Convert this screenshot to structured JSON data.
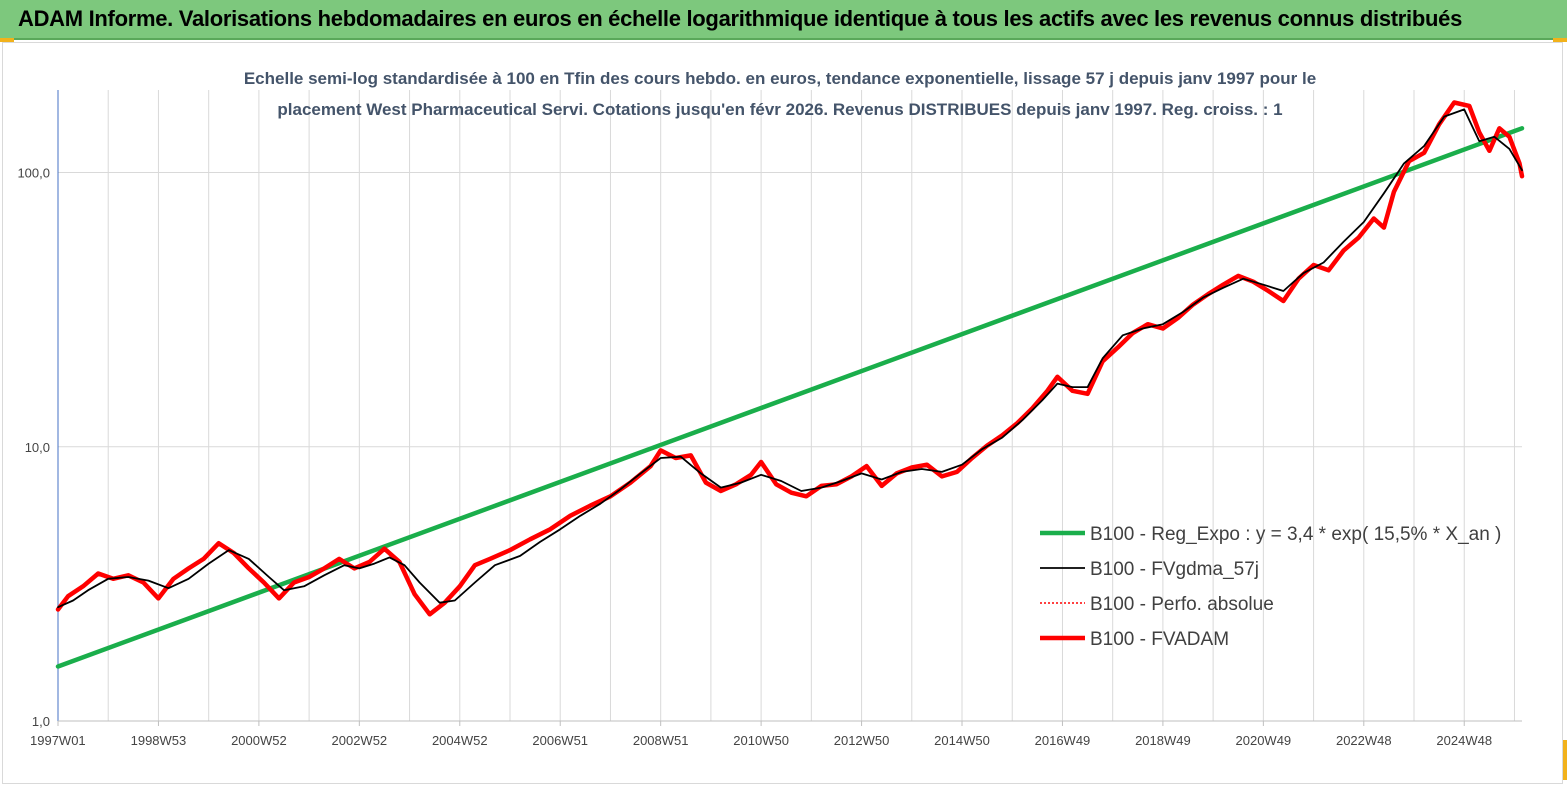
{
  "banner": {
    "title": "ADAM Informe. Valorisations hebdomadaires en euros en échelle logarithmique identique à tous les actifs avec les revenus connus distribués"
  },
  "colors": {
    "banner_bg": "#7dc87d",
    "corner_accent": "#f2b21b",
    "reg_expo": "#1aae4b",
    "fvgdma": "#000000",
    "perfo": "#ff0000",
    "fvadam": "#ff0000"
  },
  "chart_data": {
    "type": "line",
    "title_lines": [
      "Echelle semi-log standardisée à 100 en Tfin des cours hebdo. en euros, tendance exponentielle, lissage 57 j depuis janv 1997 pour le",
      "placement West Pharmaceutical Servi.  Cotations jusqu'en févr 2026. Revenus DISTRIBUES depuis janv 1997.  Reg. croiss. : 1"
    ],
    "y_scale": "log",
    "ylim": [
      1,
      200
    ],
    "y_ticks": [
      {
        "value": 1,
        "label": "1,0"
      },
      {
        "value": 10,
        "label": "10,0"
      },
      {
        "value": 100,
        "label": "100,0"
      }
    ],
    "xlim": [
      1997.0,
      2026.15
    ],
    "x_ticks": [
      {
        "value": 1997.0,
        "label": "1997W01"
      },
      {
        "value": 1999.0,
        "label": "1998W53"
      },
      {
        "value": 2001.0,
        "label": "2000W52"
      },
      {
        "value": 2003.0,
        "label": "2002W52"
      },
      {
        "value": 2005.0,
        "label": "2004W52"
      },
      {
        "value": 2007.0,
        "label": "2006W51"
      },
      {
        "value": 2009.0,
        "label": "2008W51"
      },
      {
        "value": 2011.0,
        "label": "2010W50"
      },
      {
        "value": 2013.0,
        "label": "2012W50"
      },
      {
        "value": 2015.0,
        "label": "2014W50"
      },
      {
        "value": 2017.0,
        "label": "2016W49"
      },
      {
        "value": 2019.0,
        "label": "2018W49"
      },
      {
        "value": 2021.0,
        "label": "2020W49"
      },
      {
        "value": 2023.0,
        "label": "2022W48"
      },
      {
        "value": 2025.0,
        "label": "2024W48"
      }
    ],
    "grid": "vertical and horizontal major gridlines",
    "legend_position": "lower-right",
    "series": [
      {
        "name": "B100 - Reg_Expo : y = 3,4 * exp( 15,5% *  X_an )",
        "style": "thick-solid",
        "color": "#1aae4b",
        "points": [
          [
            1997.0,
            1.58
          ],
          [
            2026.15,
            145
          ]
        ]
      },
      {
        "name": "B100 - FVgdma_57j",
        "style": "thin-solid",
        "color": "#000000",
        "points": [
          [
            1997.0,
            2.6
          ],
          [
            1997.3,
            2.75
          ],
          [
            1997.6,
            3.0
          ],
          [
            1998.0,
            3.3
          ],
          [
            1998.4,
            3.35
          ],
          [
            1998.8,
            3.25
          ],
          [
            1999.2,
            3.05
          ],
          [
            1999.6,
            3.3
          ],
          [
            2000.0,
            3.75
          ],
          [
            2000.4,
            4.2
          ],
          [
            2000.8,
            3.9
          ],
          [
            2001.2,
            3.35
          ],
          [
            2001.5,
            3.0
          ],
          [
            2001.9,
            3.1
          ],
          [
            2002.3,
            3.4
          ],
          [
            2002.7,
            3.7
          ],
          [
            2003.0,
            3.6
          ],
          [
            2003.3,
            3.75
          ],
          [
            2003.6,
            3.95
          ],
          [
            2003.9,
            3.7
          ],
          [
            2004.2,
            3.2
          ],
          [
            2004.6,
            2.7
          ],
          [
            2004.9,
            2.75
          ],
          [
            2005.3,
            3.2
          ],
          [
            2005.7,
            3.7
          ],
          [
            2006.2,
            4.0
          ],
          [
            2006.6,
            4.5
          ],
          [
            2007.0,
            5.0
          ],
          [
            2007.4,
            5.6
          ],
          [
            2007.8,
            6.2
          ],
          [
            2008.2,
            7.0
          ],
          [
            2008.6,
            8.0
          ],
          [
            2009.0,
            9.1
          ],
          [
            2009.4,
            9.2
          ],
          [
            2009.8,
            8.0
          ],
          [
            2010.2,
            7.1
          ],
          [
            2010.6,
            7.4
          ],
          [
            2011.0,
            7.9
          ],
          [
            2011.4,
            7.5
          ],
          [
            2011.8,
            6.9
          ],
          [
            2012.2,
            7.1
          ],
          [
            2012.6,
            7.5
          ],
          [
            2013.0,
            8.0
          ],
          [
            2013.4,
            7.6
          ],
          [
            2013.8,
            8.1
          ],
          [
            2014.2,
            8.3
          ],
          [
            2014.6,
            8.1
          ],
          [
            2015.0,
            8.6
          ],
          [
            2015.4,
            9.8
          ],
          [
            2015.8,
            10.8
          ],
          [
            2016.2,
            12.5
          ],
          [
            2016.6,
            14.8
          ],
          [
            2016.9,
            17.0
          ],
          [
            2017.2,
            16.5
          ],
          [
            2017.5,
            16.5
          ],
          [
            2017.8,
            21.0
          ],
          [
            2018.2,
            25.5
          ],
          [
            2018.6,
            27.0
          ],
          [
            2019.0,
            28.0
          ],
          [
            2019.4,
            31.0
          ],
          [
            2019.8,
            35.0
          ],
          [
            2020.2,
            38.0
          ],
          [
            2020.6,
            41.0
          ],
          [
            2021.0,
            39.0
          ],
          [
            2021.4,
            37.0
          ],
          [
            2021.8,
            43.0
          ],
          [
            2022.2,
            47.0
          ],
          [
            2022.6,
            56.0
          ],
          [
            2023.0,
            66.0
          ],
          [
            2023.4,
            84.0
          ],
          [
            2023.8,
            108.0
          ],
          [
            2024.2,
            125.0
          ],
          [
            2024.6,
            160.0
          ],
          [
            2025.0,
            170.0
          ],
          [
            2025.3,
            130.0
          ],
          [
            2025.6,
            135.0
          ],
          [
            2025.9,
            122.0
          ],
          [
            2026.15,
            102.0
          ]
        ]
      },
      {
        "name": "B100 - Perfo. absolue",
        "style": "dotted",
        "color": "#ff0000",
        "points": []
      },
      {
        "name": "B100 - FVADAM",
        "style": "thick-solid",
        "color": "#ff0000",
        "points": [
          [
            1997.0,
            2.55
          ],
          [
            1997.2,
            2.85
          ],
          [
            1997.5,
            3.1
          ],
          [
            1997.8,
            3.45
          ],
          [
            1998.1,
            3.3
          ],
          [
            1998.4,
            3.4
          ],
          [
            1998.7,
            3.2
          ],
          [
            1999.0,
            2.8
          ],
          [
            1999.3,
            3.3
          ],
          [
            1999.6,
            3.6
          ],
          [
            1999.9,
            3.9
          ],
          [
            2000.2,
            4.45
          ],
          [
            2000.5,
            4.1
          ],
          [
            2000.8,
            3.6
          ],
          [
            2001.1,
            3.2
          ],
          [
            2001.4,
            2.8
          ],
          [
            2001.7,
            3.2
          ],
          [
            2002.0,
            3.35
          ],
          [
            2002.3,
            3.6
          ],
          [
            2002.6,
            3.9
          ],
          [
            2002.9,
            3.6
          ],
          [
            2003.2,
            3.8
          ],
          [
            2003.5,
            4.25
          ],
          [
            2003.8,
            3.8
          ],
          [
            2004.1,
            2.9
          ],
          [
            2004.4,
            2.45
          ],
          [
            2004.7,
            2.7
          ],
          [
            2005.0,
            3.1
          ],
          [
            2005.3,
            3.7
          ],
          [
            2005.6,
            3.9
          ],
          [
            2006.0,
            4.2
          ],
          [
            2006.4,
            4.6
          ],
          [
            2006.8,
            5.0
          ],
          [
            2007.2,
            5.6
          ],
          [
            2007.6,
            6.1
          ],
          [
            2008.0,
            6.6
          ],
          [
            2008.4,
            7.4
          ],
          [
            2008.8,
            8.5
          ],
          [
            2009.0,
            9.7
          ],
          [
            2009.3,
            9.1
          ],
          [
            2009.6,
            9.3
          ],
          [
            2009.9,
            7.4
          ],
          [
            2010.2,
            6.9
          ],
          [
            2010.5,
            7.3
          ],
          [
            2010.8,
            7.9
          ],
          [
            2011.0,
            8.8
          ],
          [
            2011.3,
            7.3
          ],
          [
            2011.6,
            6.8
          ],
          [
            2011.9,
            6.6
          ],
          [
            2012.2,
            7.2
          ],
          [
            2012.5,
            7.3
          ],
          [
            2012.8,
            7.8
          ],
          [
            2013.1,
            8.5
          ],
          [
            2013.4,
            7.2
          ],
          [
            2013.7,
            8.0
          ],
          [
            2014.0,
            8.4
          ],
          [
            2014.3,
            8.6
          ],
          [
            2014.6,
            7.8
          ],
          [
            2014.9,
            8.1
          ],
          [
            2015.2,
            9.1
          ],
          [
            2015.5,
            10.1
          ],
          [
            2015.8,
            11.0
          ],
          [
            2016.1,
            12.2
          ],
          [
            2016.4,
            13.8
          ],
          [
            2016.7,
            16.0
          ],
          [
            2016.9,
            18.0
          ],
          [
            2017.2,
            16.0
          ],
          [
            2017.5,
            15.6
          ],
          [
            2017.8,
            20.5
          ],
          [
            2018.1,
            23.0
          ],
          [
            2018.4,
            26.0
          ],
          [
            2018.7,
            28.0
          ],
          [
            2019.0,
            27.0
          ],
          [
            2019.3,
            29.5
          ],
          [
            2019.6,
            33.0
          ],
          [
            2019.9,
            36.0
          ],
          [
            2020.2,
            39.0
          ],
          [
            2020.5,
            42.0
          ],
          [
            2020.8,
            40.0
          ],
          [
            2021.1,
            37.0
          ],
          [
            2021.4,
            34.0
          ],
          [
            2021.7,
            41.0
          ],
          [
            2022.0,
            46.0
          ],
          [
            2022.3,
            44.0
          ],
          [
            2022.6,
            52.0
          ],
          [
            2022.9,
            58.0
          ],
          [
            2023.2,
            68.0
          ],
          [
            2023.4,
            63.0
          ],
          [
            2023.6,
            85.0
          ],
          [
            2023.9,
            110.0
          ],
          [
            2024.2,
            118.0
          ],
          [
            2024.5,
            150.0
          ],
          [
            2024.8,
            180.0
          ],
          [
            2025.1,
            175.0
          ],
          [
            2025.3,
            140.0
          ],
          [
            2025.5,
            120.0
          ],
          [
            2025.7,
            145.0
          ],
          [
            2025.9,
            135.0
          ],
          [
            2026.1,
            108.0
          ],
          [
            2026.15,
            97.0
          ]
        ]
      }
    ]
  }
}
